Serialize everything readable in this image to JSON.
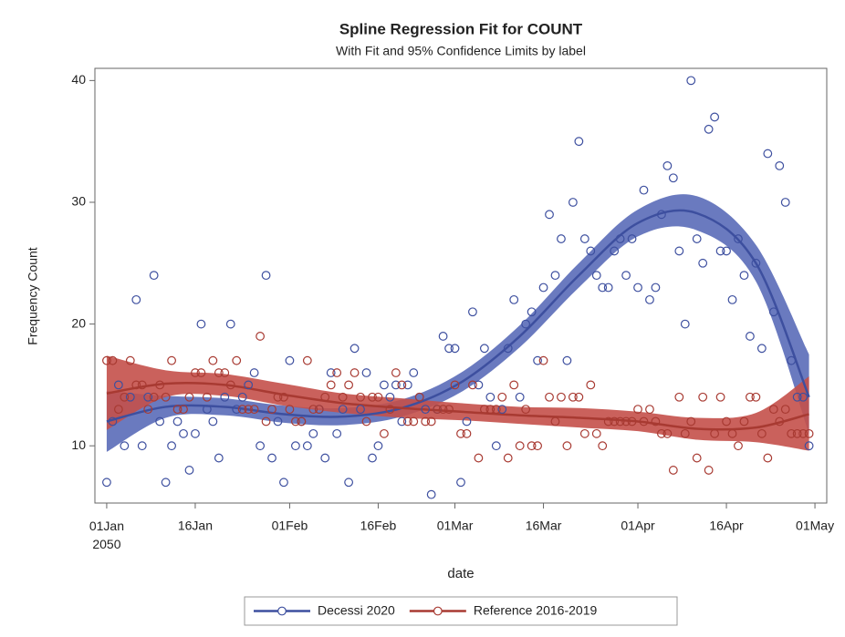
{
  "chart_data": {
    "type": "spline-fit",
    "title": "Spline Regression Fit for COUNT",
    "subtitle": "With Fit and 95% Confidence Limits by label",
    "x_label": "date",
    "y_label": "Frequency Count",
    "xlim": [
      "2049-12-30",
      "2050-05-03"
    ],
    "xticks": [
      {
        "value": "2050-01-01",
        "label": "01Jan\n2050"
      },
      {
        "value": "2050-01-16",
        "label": "16Jan"
      },
      {
        "value": "2050-02-01",
        "label": "01Feb"
      },
      {
        "value": "2050-02-16",
        "label": "16Feb"
      },
      {
        "value": "2050-03-01",
        "label": "01Mar"
      },
      {
        "value": "2050-03-16",
        "label": "16Mar"
      },
      {
        "value": "2050-04-01",
        "label": "01Apr"
      },
      {
        "value": "2050-04-16",
        "label": "16Apr"
      },
      {
        "value": "2050-05-01",
        "label": "01May"
      }
    ],
    "ylim": [
      5.3,
      41
    ],
    "yticks": [
      10,
      20,
      30,
      40
    ],
    "x": [
      "2050-01-01",
      "2050-01-02",
      "2050-01-03",
      "2050-01-04",
      "2050-01-05",
      "2050-01-06",
      "2050-01-07",
      "2050-01-08",
      "2050-01-09",
      "2050-01-10",
      "2050-01-11",
      "2050-01-12",
      "2050-01-13",
      "2050-01-14",
      "2050-01-15",
      "2050-01-16",
      "2050-01-17",
      "2050-01-18",
      "2050-01-19",
      "2050-01-20",
      "2050-01-21",
      "2050-01-22",
      "2050-01-23",
      "2050-01-24",
      "2050-01-25",
      "2050-01-26",
      "2050-01-27",
      "2050-01-28",
      "2050-01-29",
      "2050-01-30",
      "2050-01-31",
      "2050-02-01",
      "2050-02-02",
      "2050-02-03",
      "2050-02-04",
      "2050-02-05",
      "2050-02-06",
      "2050-02-07",
      "2050-02-08",
      "2050-02-09",
      "2050-02-10",
      "2050-02-11",
      "2050-02-12",
      "2050-02-13",
      "2050-02-14",
      "2050-02-15",
      "2050-02-16",
      "2050-02-17",
      "2050-02-18",
      "2050-02-19",
      "2050-02-20",
      "2050-02-21",
      "2050-02-22",
      "2050-02-23",
      "2050-02-24",
      "2050-02-25",
      "2050-02-26",
      "2050-02-27",
      "2050-02-28",
      "2050-03-01",
      "2050-03-02",
      "2050-03-03",
      "2050-03-04",
      "2050-03-05",
      "2050-03-06",
      "2050-03-07",
      "2050-03-08",
      "2050-03-09",
      "2050-03-10",
      "2050-03-11",
      "2050-03-12",
      "2050-03-13",
      "2050-03-14",
      "2050-03-15",
      "2050-03-16",
      "2050-03-17",
      "2050-03-18",
      "2050-03-19",
      "2050-03-20",
      "2050-03-21",
      "2050-03-22",
      "2050-03-23",
      "2050-03-24",
      "2050-03-25",
      "2050-03-26",
      "2050-03-27",
      "2050-03-28",
      "2050-03-29",
      "2050-03-30",
      "2050-03-31",
      "2050-04-01",
      "2050-04-02",
      "2050-04-03",
      "2050-04-04",
      "2050-04-05",
      "2050-04-06",
      "2050-04-07",
      "2050-04-08",
      "2050-04-09",
      "2050-04-10",
      "2050-04-11",
      "2050-04-12",
      "2050-04-13",
      "2050-04-14",
      "2050-04-15",
      "2050-04-16",
      "2050-04-17",
      "2050-04-18",
      "2050-04-19",
      "2050-04-20",
      "2050-04-21",
      "2050-04-22",
      "2050-04-23",
      "2050-04-24",
      "2050-04-25",
      "2050-04-26",
      "2050-04-27",
      "2050-04-28",
      "2050-04-29",
      "2050-04-30"
    ],
    "fit_x": [
      "2050-01-01",
      "2050-01-11",
      "2050-01-21",
      "2050-01-31",
      "2050-02-10",
      "2050-02-20",
      "2050-03-02",
      "2050-03-12",
      "2050-03-22",
      "2050-04-01",
      "2050-04-11",
      "2050-04-21",
      "2050-04-30"
    ],
    "series": [
      {
        "name": "Decessi 2020",
        "color": "#3d4f9f",
        "band_color": "#5a6bb8",
        "values": [
          7,
          12,
          15,
          10,
          14,
          22,
          10,
          14,
          24,
          12,
          7,
          10,
          12,
          11,
          8,
          11,
          20,
          13,
          12,
          9,
          14,
          20,
          13,
          14,
          15,
          16,
          10,
          24,
          9,
          12,
          7,
          17,
          10,
          12,
          10,
          11,
          13,
          9,
          16,
          11,
          13,
          7,
          18,
          13,
          16,
          9,
          10,
          15,
          14,
          15,
          12,
          15,
          16,
          14,
          13,
          6,
          13,
          19,
          18,
          18,
          7,
          12,
          21,
          15,
          18,
          14,
          10,
          13,
          18,
          22,
          14,
          20,
          21,
          17,
          23,
          29,
          24,
          27,
          17,
          30,
          35,
          27,
          26,
          24,
          23,
          23,
          26,
          27,
          24,
          27,
          23,
          31,
          22,
          23,
          29,
          33,
          32,
          26,
          20,
          40,
          27,
          25,
          36,
          37,
          26,
          26,
          22,
          27,
          24,
          19,
          25,
          18,
          34,
          21,
          33,
          30,
          17,
          14,
          14,
          10
        ],
        "fit": [
          12,
          13.2,
          13.2,
          12.6,
          12.4,
          13.1,
          15.2,
          19,
          24,
          28.3,
          29.1,
          25,
          14
        ],
        "lower": [
          9.5,
          12.3,
          12.5,
          11.9,
          11.7,
          12.4,
          14.4,
          18.1,
          23,
          27.2,
          27.7,
          23.5,
          11
        ],
        "upper": [
          14.5,
          14.1,
          13.9,
          13.3,
          13.1,
          13.8,
          16,
          19.9,
          25,
          29.4,
          30.5,
          26.5,
          17.5
        ]
      },
      {
        "name": "Reference 2016-2019",
        "color": "#a83a32",
        "band_color": "#c4504a",
        "values": [
          17,
          17,
          13,
          14,
          17,
          15,
          15,
          13,
          14,
          15,
          14,
          17,
          13,
          13,
          14,
          16,
          16,
          14,
          17,
          16,
          16,
          15,
          17,
          13,
          13,
          13,
          19,
          12,
          13,
          14,
          14,
          13,
          12,
          12,
          17,
          13,
          13,
          14,
          15,
          16,
          14,
          15,
          16,
          14,
          12,
          14,
          14,
          11,
          13,
          16,
          15,
          12,
          12,
          14,
          12,
          12,
          13,
          13,
          13,
          15,
          11,
          11,
          15,
          9,
          13,
          13,
          13,
          14,
          9,
          15,
          10,
          13,
          10,
          10,
          17,
          14,
          12,
          14,
          10,
          14,
          14,
          11,
          15,
          11,
          10,
          12,
          12,
          12,
          12,
          12,
          13,
          12,
          13,
          12,
          11,
          11,
          8,
          14,
          11,
          12,
          9,
          14,
          8,
          11,
          14,
          12,
          11,
          10,
          12,
          14,
          14,
          11,
          9,
          13,
          12,
          13,
          11,
          11,
          11,
          11
        ],
        "fit": [
          14.3,
          15.1,
          15,
          14.2,
          13.5,
          13.1,
          12.8,
          12.5,
          12.3,
          12,
          11.4,
          11.5,
          12.6
        ],
        "lower": [
          11.3,
          14,
          14.1,
          13.3,
          12.7,
          12.3,
          12.1,
          11.8,
          11.5,
          11.2,
          10.5,
          10.3,
          9.6
        ],
        "upper": [
          17.4,
          16.2,
          15.9,
          15.1,
          14.3,
          13.9,
          13.5,
          13.2,
          13.1,
          12.8,
          12.3,
          12.7,
          15.7
        ]
      }
    ]
  }
}
